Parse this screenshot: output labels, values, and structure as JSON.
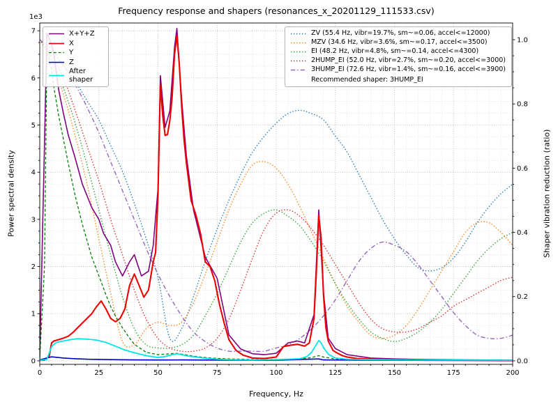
{
  "chart_data": {
    "type": "line",
    "title": "Frequency response and shapers (resonances_x_20201129_111533.csv)",
    "xlabel": "Frequency, Hz",
    "ylabel_left": "Power spectral density",
    "ylabel_right": "Shaper vibration reduction (ratio)",
    "offset_label": "1e3",
    "legend_note": "Recommended shaper: 3HUMP_EI",
    "xlim": [
      0,
      200
    ],
    "ylim_left": [
      -75,
      7165
    ],
    "ylim_right": [
      -0.011,
      1.052
    ],
    "x_major_ticks": [
      0,
      25,
      50,
      75,
      100,
      125,
      150,
      175,
      200
    ],
    "x_minor_step": 5,
    "y_left_major_ticks": [
      0,
      1000,
      2000,
      3000,
      4000,
      5000,
      6000,
      7000
    ],
    "y_left_minor_step": 250,
    "y_right_major_ticks": [
      0,
      0.2,
      0.4,
      0.6,
      0.8,
      1.0
    ],
    "y_right_minor_step": 0.05,
    "grid": true,
    "legend_positions": {
      "psd": "upper left",
      "shapers": "upper right"
    },
    "psd_series": [
      {
        "key": "xyz",
        "name": "X+Y+Z",
        "color": "#800080",
        "style": "solid",
        "width": 1.6,
        "x": [
          0,
          2,
          3,
          4,
          5,
          6,
          8,
          10,
          12,
          15,
          18,
          20,
          22,
          25,
          27,
          30,
          32,
          35,
          38,
          40,
          43,
          46,
          48,
          50,
          51,
          53,
          55,
          57,
          58,
          60,
          62,
          65,
          70,
          75,
          80,
          85,
          90,
          95,
          100,
          105,
          109,
          112,
          116,
          118,
          120,
          122,
          125,
          130,
          140,
          150,
          160,
          180,
          200
        ],
        "y": [
          80,
          4600,
          6950,
          6850,
          6700,
          6500,
          5750,
          5250,
          4800,
          4300,
          3750,
          3500,
          3250,
          3000,
          2700,
          2450,
          2100,
          1800,
          2100,
          2250,
          1800,
          1900,
          2450,
          3650,
          6050,
          4950,
          5300,
          6650,
          7050,
          5550,
          4350,
          3200,
          2200,
          1750,
          550,
          250,
          150,
          130,
          160,
          380,
          420,
          380,
          980,
          3200,
          1450,
          480,
          260,
          130,
          60,
          40,
          30,
          20,
          15
        ]
      },
      {
        "key": "x",
        "name": "X",
        "color": "#ee0000",
        "style": "solid",
        "width": 2.1,
        "x": [
          0,
          2,
          4,
          5,
          6,
          8,
          10,
          12,
          14,
          16,
          18,
          20,
          22,
          24,
          26,
          28,
          30,
          32,
          34,
          36,
          38,
          40,
          42,
          44,
          46,
          48,
          49,
          50,
          51,
          52,
          53,
          54,
          55,
          56,
          57,
          58,
          59,
          60,
          61,
          62,
          64,
          66,
          68,
          70,
          72,
          74,
          76,
          78,
          80,
          83,
          86,
          90,
          95,
          100,
          103,
          106,
          109,
          112,
          114,
          116,
          117,
          118,
          119,
          120,
          121,
          122,
          124,
          126,
          128,
          130,
          134,
          138,
          142,
          146,
          150,
          160,
          170,
          180,
          190,
          200
        ],
        "y": [
          10,
          15,
          100,
          380,
          420,
          450,
          480,
          520,
          600,
          700,
          800,
          900,
          1000,
          1150,
          1270,
          1100,
          900,
          830,
          900,
          1100,
          1600,
          1840,
          1600,
          1350,
          1500,
          2100,
          2300,
          3500,
          5850,
          5200,
          4780,
          4800,
          5100,
          5600,
          6500,
          6900,
          6300,
          5400,
          4700,
          4200,
          3400,
          3100,
          2700,
          2100,
          2000,
          1700,
          1200,
          800,
          450,
          220,
          120,
          60,
          50,
          80,
          300,
          330,
          350,
          310,
          380,
          900,
          1900,
          3080,
          2600,
          1400,
          700,
          420,
          220,
          160,
          110,
          80,
          50,
          40,
          30,
          25,
          20,
          15,
          12,
          10,
          8,
          5
        ]
      },
      {
        "key": "y",
        "name": "Y",
        "color": "#007f00",
        "style": "dashed",
        "width": 1.3,
        "x": [
          0,
          2,
          3,
          4,
          5,
          6,
          8,
          10,
          12,
          15,
          18,
          20,
          22,
          25,
          28,
          30,
          32,
          35,
          38,
          40,
          45,
          50,
          55,
          58,
          60,
          65,
          70,
          75,
          80,
          90,
          100,
          110,
          115,
          118,
          120,
          125,
          130,
          140,
          150,
          160,
          180,
          200
        ],
        "y": [
          50,
          2000,
          6500,
          6400,
          6200,
          5800,
          5200,
          4700,
          4200,
          3500,
          2900,
          2550,
          2200,
          1800,
          1400,
          1150,
          950,
          700,
          480,
          350,
          180,
          130,
          150,
          160,
          140,
          100,
          70,
          50,
          40,
          30,
          30,
          40,
          70,
          110,
          80,
          40,
          30,
          20,
          15,
          12,
          10,
          8
        ]
      },
      {
        "key": "z",
        "name": "Z",
        "color": "#0000b8",
        "style": "solid",
        "width": 1.6,
        "x": [
          0,
          3,
          5,
          8,
          10,
          15,
          20,
          30,
          40,
          50,
          60,
          80,
          100,
          118,
          120,
          150,
          200
        ],
        "y": [
          20,
          60,
          85,
          70,
          60,
          45,
          35,
          25,
          20,
          18,
          20,
          15,
          12,
          40,
          20,
          10,
          8
        ]
      },
      {
        "key": "after_shaper",
        "name": "After shaper",
        "color": "#00e5e5",
        "style": "solid",
        "width": 1.8,
        "x": [
          0,
          3,
          5,
          7,
          10,
          13,
          16,
          20,
          24,
          28,
          32,
          36,
          40,
          45,
          50,
          53,
          56,
          58,
          60,
          63,
          66,
          70,
          75,
          80,
          90,
          100,
          105,
          110,
          113,
          115,
          117,
          118,
          119,
          120,
          122,
          125,
          130,
          140,
          150,
          175,
          200
        ],
        "y": [
          10,
          30,
          300,
          390,
          420,
          450,
          470,
          460,
          440,
          390,
          310,
          230,
          170,
          110,
          70,
          90,
          130,
          150,
          130,
          100,
          80,
          55,
          35,
          25,
          20,
          25,
          35,
          45,
          90,
          180,
          350,
          430,
          380,
          280,
          140,
          60,
          35,
          25,
          20,
          15,
          12
        ]
      }
    ],
    "shaper_series": [
      {
        "key": "zv",
        "name": "ZV (55.4 Hz, vibr=19.7%, sm~=0.06, accel<=12000)",
        "color": "#1f77b4",
        "style": "dotted",
        "width": 1.4,
        "x_start": 0,
        "x_step": 5,
        "values": [
          1.0,
          0.96,
          0.92,
          0.87,
          0.81,
          0.75,
          0.67,
          0.59,
          0.49,
          0.38,
          0.26,
          0.07,
          0.1,
          0.2,
          0.31,
          0.41,
          0.5,
          0.58,
          0.65,
          0.7,
          0.74,
          0.77,
          0.78,
          0.77,
          0.75,
          0.7,
          0.65,
          0.58,
          0.51,
          0.44,
          0.38,
          0.33,
          0.29,
          0.28,
          0.29,
          0.32,
          0.37,
          0.43,
          0.48,
          0.52,
          0.55
        ]
      },
      {
        "key": "mzv",
        "name": "MZV (34.6 Hz, vibr=3.6%, sm~=0.17, accel<=3500)",
        "color": "#ff7f0e",
        "style": "dotted",
        "width": 1.4,
        "x_start": 0,
        "x_step": 5,
        "values": [
          1.0,
          0.93,
          0.83,
          0.7,
          0.55,
          0.38,
          0.21,
          0.06,
          0.05,
          0.1,
          0.12,
          0.11,
          0.12,
          0.18,
          0.27,
          0.37,
          0.47,
          0.55,
          0.61,
          0.62,
          0.6,
          0.55,
          0.48,
          0.4,
          0.32,
          0.24,
          0.17,
          0.12,
          0.08,
          0.07,
          0.08,
          0.11,
          0.16,
          0.22,
          0.28,
          0.34,
          0.4,
          0.43,
          0.43,
          0.4,
          0.36
        ]
      },
      {
        "key": "ei",
        "name": "EI (48.2 Hz, vibr=4.8%, sm~=0.14, accel<=4300)",
        "color": "#2ca02c",
        "style": "dotted",
        "width": 1.4,
        "x_start": 0,
        "x_step": 5,
        "values": [
          1.0,
          0.94,
          0.85,
          0.74,
          0.61,
          0.47,
          0.33,
          0.2,
          0.1,
          0.05,
          0.04,
          0.04,
          0.05,
          0.08,
          0.14,
          0.21,
          0.29,
          0.37,
          0.43,
          0.46,
          0.47,
          0.45,
          0.42,
          0.37,
          0.31,
          0.24,
          0.18,
          0.13,
          0.09,
          0.07,
          0.06,
          0.07,
          0.09,
          0.12,
          0.16,
          0.21,
          0.26,
          0.31,
          0.35,
          0.38,
          0.4
        ]
      },
      {
        "key": "2hump_ei",
        "name": "2HUMP_EI (52.0 Hz, vibr=2.7%, sm~=0.20, accel<=3000)",
        "color": "#d62728",
        "style": "dotted",
        "width": 1.4,
        "x_start": 0,
        "x_step": 5,
        "values": [
          1.0,
          0.95,
          0.88,
          0.78,
          0.67,
          0.56,
          0.44,
          0.33,
          0.22,
          0.13,
          0.07,
          0.04,
          0.03,
          0.03,
          0.04,
          0.07,
          0.13,
          0.22,
          0.32,
          0.41,
          0.46,
          0.47,
          0.45,
          0.41,
          0.36,
          0.3,
          0.24,
          0.18,
          0.13,
          0.1,
          0.09,
          0.09,
          0.1,
          0.12,
          0.14,
          0.17,
          0.19,
          0.21,
          0.23,
          0.25,
          0.26
        ]
      },
      {
        "key": "3hump_ei",
        "name": "3HUMP_EI (72.6 Hz, vibr=1.4%, sm~=0.16, accel<=3900)",
        "color": "#9467bd",
        "style": "dashdot",
        "width": 1.4,
        "x_start": 0,
        "x_step": 5,
        "values": [
          1.0,
          0.97,
          0.92,
          0.86,
          0.79,
          0.71,
          0.62,
          0.53,
          0.44,
          0.35,
          0.27,
          0.2,
          0.14,
          0.09,
          0.06,
          0.04,
          0.03,
          0.03,
          0.03,
          0.03,
          0.04,
          0.05,
          0.07,
          0.1,
          0.14,
          0.19,
          0.25,
          0.31,
          0.35,
          0.37,
          0.36,
          0.34,
          0.3,
          0.25,
          0.2,
          0.15,
          0.11,
          0.08,
          0.07,
          0.07,
          0.08
        ]
      }
    ]
  }
}
